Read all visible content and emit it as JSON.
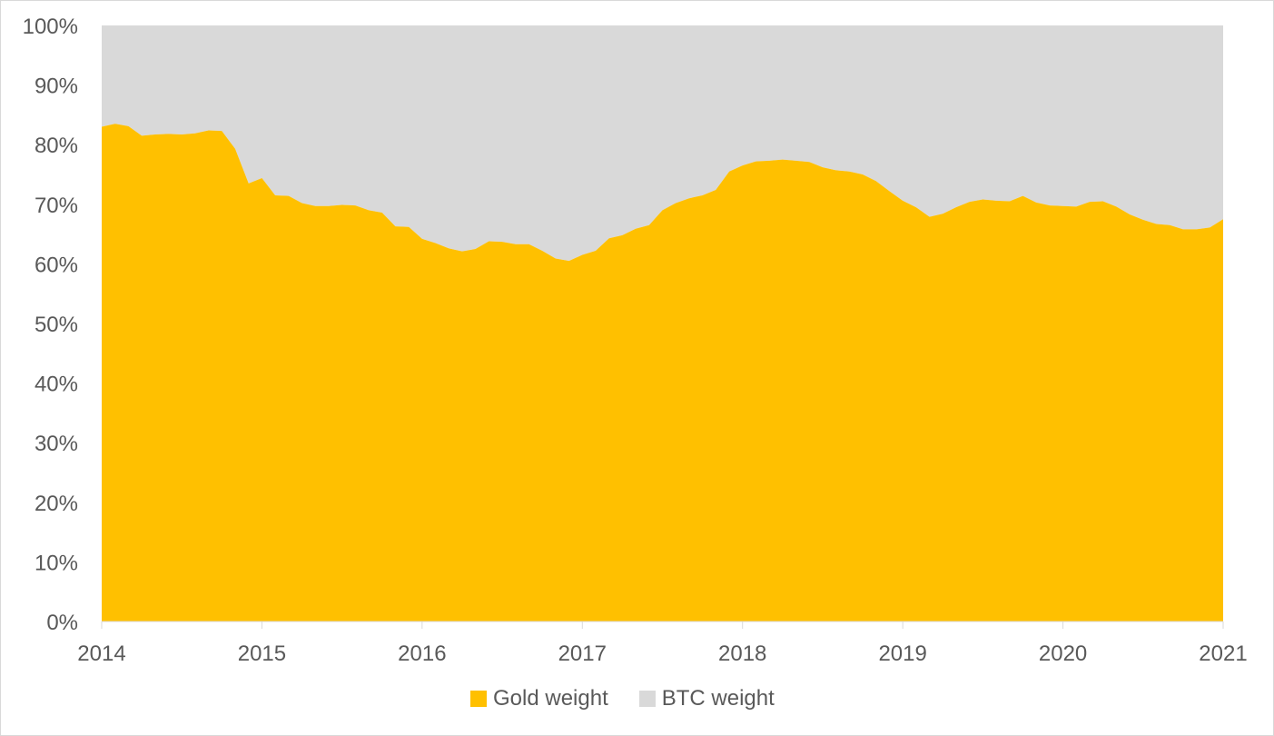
{
  "chart_data": {
    "type": "area",
    "stacked": true,
    "title": "",
    "xlabel": "",
    "ylabel": "",
    "ylim": [
      0,
      100
    ],
    "y_ticks": [
      "0%",
      "10%",
      "20%",
      "30%",
      "40%",
      "50%",
      "60%",
      "70%",
      "80%",
      "90%",
      "100%"
    ],
    "x_ticks": [
      "2014",
      "2015",
      "2016",
      "2017",
      "2018",
      "2019",
      "2020",
      "2021"
    ],
    "xlim": [
      2014,
      2021
    ],
    "grid": false,
    "legend_position": "bottom",
    "colors": {
      "gold": "#ffc000",
      "btc": "#d9d9d9"
    },
    "series": [
      {
        "name": "Gold weight",
        "x": [
          2014.0,
          2014.083,
          2014.167,
          2014.25,
          2014.333,
          2014.417,
          2014.5,
          2014.583,
          2014.667,
          2014.75,
          2014.833,
          2014.917,
          2015.0,
          2015.083,
          2015.167,
          2015.25,
          2015.333,
          2015.417,
          2015.5,
          2015.583,
          2015.667,
          2015.75,
          2015.833,
          2015.917,
          2016.0,
          2016.083,
          2016.167,
          2016.25,
          2016.333,
          2016.417,
          2016.5,
          2016.583,
          2016.667,
          2016.75,
          2016.833,
          2016.917,
          2017.0,
          2017.083,
          2017.167,
          2017.25,
          2017.333,
          2017.417,
          2017.5,
          2017.583,
          2017.667,
          2017.75,
          2017.833,
          2017.917,
          2018.0,
          2018.083,
          2018.167,
          2018.25,
          2018.333,
          2018.417,
          2018.5,
          2018.583,
          2018.667,
          2018.75,
          2018.833,
          2018.917,
          2019.0,
          2019.083,
          2019.167,
          2019.25,
          2019.333,
          2019.417,
          2019.5,
          2019.583,
          2019.667,
          2019.75,
          2019.833,
          2019.917,
          2020.0,
          2020.083,
          2020.167,
          2020.25,
          2020.333,
          2020.417,
          2020.5,
          2020.583,
          2020.667,
          2020.75,
          2020.833,
          2020.917,
          2021.0
        ],
        "values": [
          83.0,
          83.5,
          83.1,
          81.5,
          81.7,
          81.8,
          81.7,
          81.9,
          82.4,
          82.3,
          79.3,
          73.5,
          74.4,
          71.5,
          71.4,
          70.2,
          69.7,
          69.7,
          69.9,
          69.8,
          69.0,
          68.6,
          66.3,
          66.2,
          64.2,
          63.5,
          62.6,
          62.1,
          62.5,
          63.8,
          63.7,
          63.3,
          63.3,
          62.2,
          60.9,
          60.5,
          61.5,
          62.2,
          64.3,
          64.8,
          65.9,
          66.5,
          69.0,
          70.2,
          71.0,
          71.5,
          72.4,
          75.5,
          76.5,
          77.2,
          77.3,
          77.5,
          77.3,
          77.1,
          76.2,
          75.7,
          75.5,
          75.0,
          73.9,
          72.2,
          70.6,
          69.5,
          67.9,
          68.4,
          69.5,
          70.4,
          70.8,
          70.6,
          70.5,
          71.4,
          70.3,
          69.8,
          69.7,
          69.6,
          70.4,
          70.5,
          69.6,
          68.3,
          67.4,
          66.7,
          66.5,
          65.8,
          65.8,
          66.1,
          67.5
        ]
      },
      {
        "name": "BTC weight",
        "values_note_free": true,
        "values": [
          17.0,
          16.5,
          16.9,
          18.5,
          18.3,
          18.2,
          18.3,
          18.1,
          17.6,
          17.7,
          20.7,
          26.5,
          25.6,
          28.5,
          28.6,
          29.8,
          30.3,
          30.3,
          30.1,
          30.2,
          31.0,
          31.4,
          33.7,
          33.8,
          35.8,
          36.5,
          37.4,
          37.9,
          37.5,
          36.2,
          36.3,
          36.7,
          36.7,
          37.8,
          39.1,
          39.5,
          38.5,
          37.8,
          35.7,
          35.2,
          34.1,
          33.5,
          31.0,
          29.8,
          29.0,
          28.5,
          27.6,
          24.5,
          23.5,
          22.8,
          22.7,
          22.5,
          22.7,
          22.9,
          23.8,
          24.3,
          24.5,
          25.0,
          26.1,
          27.8,
          29.4,
          30.5,
          32.1,
          31.6,
          30.5,
          29.6,
          29.2,
          29.4,
          29.5,
          28.6,
          29.7,
          30.2,
          30.3,
          30.4,
          29.6,
          29.5,
          30.4,
          31.7,
          32.6,
          33.3,
          33.5,
          34.2,
          34.2,
          33.9,
          32.5
        ]
      }
    ]
  }
}
